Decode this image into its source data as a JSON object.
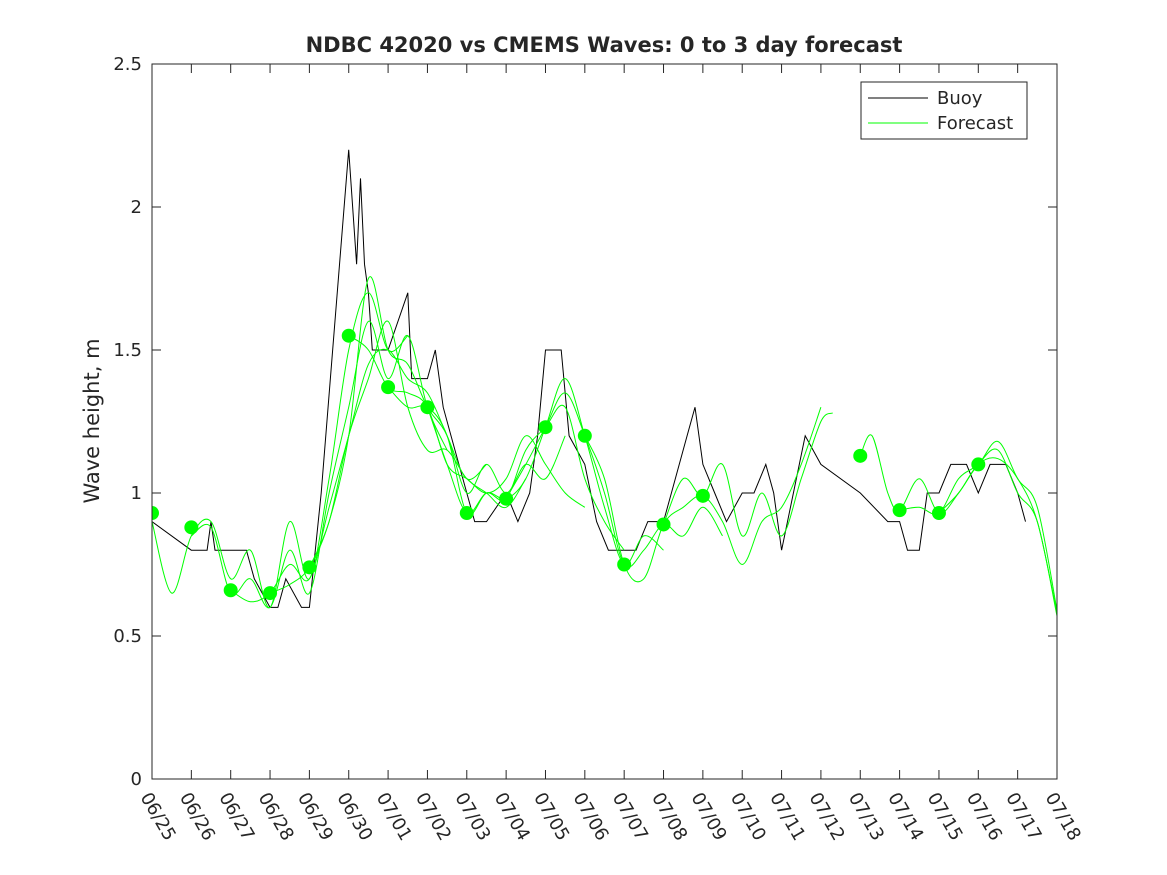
{
  "chart_data": {
    "type": "line",
    "title": "NDBC 42020 vs CMEMS Waves: 0 to 3 day forecast",
    "xlabel": "",
    "ylabel": "Wave height, m",
    "x_tick_labels": [
      "06/25",
      "06/26",
      "06/27",
      "06/28",
      "06/29",
      "06/30",
      "07/01",
      "07/02",
      "07/03",
      "07/04",
      "07/05",
      "07/06",
      "07/07",
      "07/08",
      "07/09",
      "07/10",
      "07/11",
      "07/12",
      "07/13",
      "07/14",
      "07/15",
      "07/16",
      "07/17",
      "07/18"
    ],
    "y_tick_labels": [
      "0",
      "0.5",
      "1",
      "1.5",
      "2",
      "2.5"
    ],
    "xlim": [
      "06/25",
      "07/18"
    ],
    "ylim": [
      0,
      2.5
    ],
    "grid": false,
    "legend_placement": "top-right",
    "colors": {
      "buoy": "#000000",
      "forecast": "#00ff00",
      "axis": "#262626"
    },
    "series": [
      {
        "name": "Buoy",
        "color": "#000000",
        "points": [
          [
            "06/25",
            0.9
          ],
          [
            "06/26",
            0.8
          ],
          [
            "06/26.4",
            0.8
          ],
          [
            "06/26.5",
            0.9
          ],
          [
            "06/26.6",
            0.8
          ],
          [
            "06/27",
            0.8
          ],
          [
            "06/27.4",
            0.8
          ],
          [
            "06/27.6",
            0.7
          ],
          [
            "06/28",
            0.6
          ],
          [
            "06/28.2",
            0.6
          ],
          [
            "06/28.4",
            0.7
          ],
          [
            "06/28.8",
            0.6
          ],
          [
            "06/29",
            0.6
          ],
          [
            "06/29.3",
            1.0
          ],
          [
            "06/30",
            2.2
          ],
          [
            "06/30.2",
            1.8
          ],
          [
            "06/30.3",
            2.1
          ],
          [
            "06/30.4",
            1.8
          ],
          [
            "06/30.5",
            1.7
          ],
          [
            "06/30.6",
            1.5
          ],
          [
            "07/01",
            1.5
          ],
          [
            "07/01.5",
            1.7
          ],
          [
            "07/01.6",
            1.4
          ],
          [
            "07/02",
            1.4
          ],
          [
            "07/02.2",
            1.5
          ],
          [
            "07/02.4",
            1.3
          ],
          [
            "07/02.6",
            1.2
          ],
          [
            "07/03",
            1.0
          ],
          [
            "07/03.2",
            0.9
          ],
          [
            "07/03.5",
            0.9
          ],
          [
            "07/04",
            1.0
          ],
          [
            "07/04.3",
            0.9
          ],
          [
            "07/04.6",
            1.0
          ],
          [
            "07/04.8",
            1.2
          ],
          [
            "07/05",
            1.5
          ],
          [
            "07/05.4",
            1.5
          ],
          [
            "07/05.6",
            1.2
          ],
          [
            "07/06",
            1.1
          ],
          [
            "07/06.3",
            0.9
          ],
          [
            "07/06.6",
            0.8
          ],
          [
            "07/07",
            0.8
          ],
          [
            "07/07.3",
            0.8
          ],
          [
            "07/07.6",
            0.9
          ],
          [
            "07/08",
            0.9
          ],
          [
            "07/08.2",
            1.0
          ],
          [
            "07/08.6",
            1.2
          ],
          [
            "07/08.8",
            1.3
          ],
          [
            "07/09",
            1.1
          ],
          [
            "07/09.3",
            1.0
          ],
          [
            "07/09.6",
            0.9
          ],
          [
            "07/10",
            1.0
          ],
          [
            "07/10.3",
            1.0
          ],
          [
            "07/10.6",
            1.1
          ],
          [
            "07/10.8",
            1.0
          ],
          [
            "07/11",
            0.8
          ],
          [
            "07/11.3",
            1.0
          ],
          [
            "07/11.6",
            1.2
          ],
          [
            "07/12",
            1.1
          ],
          [
            "07/13",
            1.0
          ],
          [
            "07/13.7",
            0.9
          ],
          [
            "07/14",
            0.9
          ],
          [
            "07/14.2",
            0.8
          ],
          [
            "07/14.5",
            0.8
          ],
          [
            "07/14.7",
            1.0
          ],
          [
            "07/15",
            1.0
          ],
          [
            "07/15.3",
            1.1
          ],
          [
            "07/15.7",
            1.1
          ],
          [
            "07/16",
            1.0
          ],
          [
            "07/16.3",
            1.1
          ],
          [
            "07/16.7",
            1.1
          ],
          [
            "07/17",
            1.0
          ],
          [
            "07/17.2",
            0.9
          ]
        ]
      },
      {
        "name": "Forecast",
        "color": "#00ff00",
        "runs": [
          [
            [
              "06/25",
              0.9
            ],
            [
              "06/25.5",
              0.65
            ],
            [
              "06/26",
              0.85
            ],
            [
              "06/26.5",
              0.9
            ],
            [
              "06/27",
              0.7
            ],
            [
              "06/27.5",
              0.8
            ],
            [
              "06/28",
              0.6
            ],
            [
              "06/28.5",
              0.9
            ],
            [
              "06/29",
              0.7
            ],
            [
              "06/29.5",
              1.05
            ],
            [
              "06/30",
              1.5
            ],
            [
              "06/30.5",
              1.7
            ],
            [
              "07/01",
              1.5
            ],
            [
              "07/01.5",
              1.55
            ]
          ],
          [
            [
              "06/26",
              0.85
            ],
            [
              "06/26.5",
              0.88
            ],
            [
              "06/27",
              0.65
            ],
            [
              "06/27.5",
              0.7
            ],
            [
              "06/28",
              0.6
            ],
            [
              "06/28.5",
              0.8
            ],
            [
              "06/29",
              0.65
            ],
            [
              "06/29.5",
              1.0
            ],
            [
              "06/30",
              1.3
            ],
            [
              "06/30.5",
              1.6
            ],
            [
              "07/01",
              1.4
            ],
            [
              "07/01.5",
              1.55
            ],
            [
              "07/02",
              1.3
            ],
            [
              "07/02.5",
              1.15
            ]
          ],
          [
            [
              "06/27",
              0.66
            ],
            [
              "06/27.5",
              0.62
            ],
            [
              "06/28",
              0.65
            ],
            [
              "06/28.5",
              0.75
            ],
            [
              "06/29",
              0.7
            ],
            [
              "06/29.5",
              0.95
            ],
            [
              "06/30",
              1.2
            ],
            [
              "06/30.5",
              1.45
            ],
            [
              "07/01",
              1.5
            ],
            [
              "07/01.5",
              1.4
            ],
            [
              "07/02",
              1.35
            ],
            [
              "07/02.5",
              1.2
            ],
            [
              "07/03",
              1.05
            ],
            [
              "07/03.5",
              1.1
            ]
          ],
          [
            [
              "06/28",
              0.65
            ],
            [
              "06/28.5",
              0.68
            ],
            [
              "06/29",
              0.74
            ],
            [
              "06/29.5",
              0.9
            ],
            [
              "06/30",
              1.2
            ],
            [
              "06/30.5",
              1.4
            ],
            [
              "07/01",
              1.6
            ],
            [
              "07/01.5",
              1.3
            ],
            [
              "07/02",
              1.15
            ],
            [
              "07/02.5",
              1.15
            ],
            [
              "07/03",
              1.05
            ],
            [
              "07/03.5",
              1.0
            ],
            [
              "07/04",
              0.95
            ],
            [
              "07/04.5",
              1.05
            ]
          ],
          [
            [
              "06/29",
              0.74
            ],
            [
              "06/29.5",
              0.9
            ],
            [
              "06/30",
              1.2
            ],
            [
              "06/30.5",
              1.75
            ],
            [
              "07/01",
              1.5
            ],
            [
              "07/01.5",
              1.45
            ],
            [
              "07/02",
              1.3
            ],
            [
              "07/02.5",
              1.2
            ],
            [
              "07/03",
              1.0
            ],
            [
              "07/03.5",
              1.1
            ],
            [
              "07/04",
              1.0
            ],
            [
              "07/04.5",
              1.1
            ],
            [
              "07/05",
              1.05
            ],
            [
              "07/05.5",
              1.2
            ]
          ],
          [
            [
              "06/30",
              1.55
            ],
            [
              "06/30.5",
              1.5
            ],
            [
              "07/01",
              1.37
            ],
            [
              "07/01.5",
              1.35
            ],
            [
              "07/02",
              1.3
            ],
            [
              "07/02.5",
              1.1
            ],
            [
              "07/03",
              1.05
            ],
            [
              "07/03.5",
              1.0
            ],
            [
              "07/04",
              1.05
            ],
            [
              "07/04.5",
              1.2
            ],
            [
              "07/05",
              1.1
            ],
            [
              "07/05.5",
              1.0
            ],
            [
              "07/06",
              0.95
            ]
          ],
          [
            [
              "07/01",
              1.37
            ],
            [
              "07/01.5",
              1.3
            ],
            [
              "07/02",
              1.3
            ],
            [
              "07/02.5",
              1.2
            ],
            [
              "07/03",
              0.93
            ],
            [
              "07/03.5",
              1.0
            ],
            [
              "07/04",
              0.98
            ],
            [
              "07/04.5",
              1.15
            ],
            [
              "07/05",
              1.23
            ],
            [
              "07/05.5",
              1.3
            ],
            [
              "07/06",
              1.05
            ],
            [
              "07/06.5",
              0.9
            ],
            [
              "07/07",
              0.8
            ]
          ],
          [
            [
              "07/02",
              1.3
            ],
            [
              "07/02.5",
              1.1
            ],
            [
              "07/03",
              0.93
            ],
            [
              "07/03.5",
              1.0
            ],
            [
              "07/04",
              0.98
            ],
            [
              "07/04.5",
              1.05
            ],
            [
              "07/05",
              1.23
            ],
            [
              "07/05.5",
              1.4
            ],
            [
              "07/06",
              1.2
            ],
            [
              "07/06.5",
              0.95
            ],
            [
              "07/07",
              0.75
            ],
            [
              "07/07.5",
              0.85
            ],
            [
              "07/08",
              0.8
            ]
          ],
          [
            [
              "07/04",
              0.98
            ],
            [
              "07/04.5",
              1.1
            ],
            [
              "07/05",
              1.23
            ],
            [
              "07/05.5",
              1.35
            ],
            [
              "07/06",
              1.2
            ],
            [
              "07/06.5",
              1.0
            ],
            [
              "07/07",
              0.75
            ],
            [
              "07/07.5",
              0.8
            ],
            [
              "07/08",
              0.89
            ],
            [
              "07/08.5",
              0.85
            ],
            [
              "07/09",
              0.95
            ],
            [
              "07/09.5",
              0.85
            ]
          ],
          [
            [
              "07/06",
              1.2
            ],
            [
              "07/06.5",
              1.05
            ],
            [
              "07/07",
              0.75
            ],
            [
              "07/07.5",
              0.7
            ],
            [
              "07/08",
              0.89
            ],
            [
              "07/08.5",
              0.95
            ],
            [
              "07/09",
              0.99
            ],
            [
              "07/09.5",
              0.9
            ],
            [
              "07/10",
              0.75
            ],
            [
              "07/10.5",
              0.9
            ],
            [
              "07/11",
              0.95
            ],
            [
              "07/11.5",
              1.1
            ],
            [
              "07/12",
              1.3
            ]
          ],
          [
            [
              "07/08",
              0.89
            ],
            [
              "07/08.5",
              1.05
            ],
            [
              "07/09",
              0.99
            ],
            [
              "07/09.5",
              1.1
            ],
            [
              "07/10",
              0.85
            ],
            [
              "07/10.5",
              1.0
            ],
            [
              "07/11",
              0.85
            ],
            [
              "07/11.5",
              1.05
            ],
            [
              "07/12",
              1.25
            ],
            [
              "07/12.3",
              1.28
            ]
          ],
          [
            [
              "07/13",
              1.13
            ],
            [
              "07/13.3",
              1.2
            ],
            [
              "07/13.7",
              1.0
            ],
            [
              "07/14",
              0.94
            ],
            [
              "07/14.5",
              1.05
            ],
            [
              "07/15",
              0.93
            ],
            [
              "07/15.5",
              1.0
            ],
            [
              "07/16",
              1.1
            ],
            [
              "07/16.5",
              1.15
            ],
            [
              "07/17",
              1.0
            ],
            [
              "07/17.5",
              0.9
            ],
            [
              "07/18",
              0.57
            ]
          ],
          [
            [
              "07/14",
              0.94
            ],
            [
              "07/14.5",
              0.95
            ],
            [
              "07/15",
              0.93
            ],
            [
              "07/15.5",
              1.05
            ],
            [
              "07/16",
              1.1
            ],
            [
              "07/16.5",
              1.18
            ],
            [
              "07/17",
              1.05
            ],
            [
              "07/17.5",
              0.95
            ],
            [
              "07/18",
              0.59
            ]
          ],
          [
            [
              "07/15",
              0.93
            ],
            [
              "07/15.5",
              1.0
            ],
            [
              "07/16",
              1.1
            ],
            [
              "07/16.5",
              1.12
            ],
            [
              "07/17",
              1.05
            ],
            [
              "07/17.5",
              0.9
            ],
            [
              "07/18",
              0.58
            ]
          ]
        ],
        "markers": [
          [
            "06/25",
            0.93
          ],
          [
            "06/26",
            0.88
          ],
          [
            "06/27",
            0.66
          ],
          [
            "06/28",
            0.65
          ],
          [
            "06/29",
            0.74
          ],
          [
            "06/30",
            1.55
          ],
          [
            "07/01",
            1.37
          ],
          [
            "07/02",
            1.3
          ],
          [
            "07/03",
            0.93
          ],
          [
            "07/04",
            0.98
          ],
          [
            "07/05",
            1.23
          ],
          [
            "07/06",
            1.2
          ],
          [
            "07/07",
            0.75
          ],
          [
            "07/08",
            0.89
          ],
          [
            "07/09",
            0.99
          ],
          [
            "07/13",
            1.13
          ],
          [
            "07/14",
            0.94
          ],
          [
            "07/15",
            0.93
          ],
          [
            "07/16",
            1.1
          ]
        ]
      }
    ]
  }
}
